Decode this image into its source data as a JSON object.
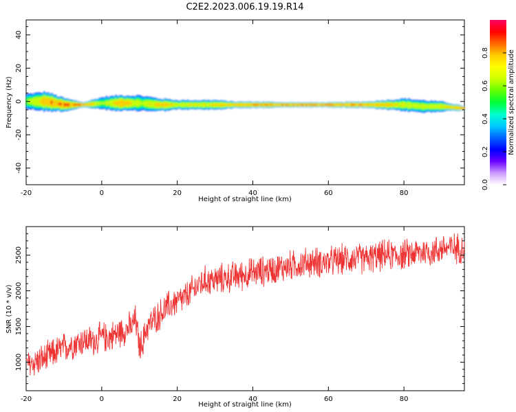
{
  "figure_title": "C2E2.2023.006.19.19.R14",
  "chart_data": [
    {
      "type": "heatmap",
      "xlabel": "Height of straight line (km)",
      "ylabel": "Frequency (Hz)",
      "xlim": [
        -20,
        96
      ],
      "ylim": [
        -50,
        49
      ],
      "x_ticks": [
        -20,
        0,
        20,
        40,
        60,
        80
      ],
      "y_ticks": [
        -40,
        -20,
        0,
        20,
        40
      ],
      "colorbar": {
        "label": "Normalized spectral amplitude",
        "range": [
          0,
          1
        ],
        "ticks": [
          "0.0",
          "0.2",
          "0.4",
          "0.6",
          "0.8"
        ],
        "colors": [
          "#ffffff",
          "#cc99ff",
          "#6600ff",
          "#0000ff",
          "#0066ff",
          "#00ccff",
          "#00ffcc",
          "#00ff33",
          "#66ff00",
          "#ccff00",
          "#ffff00",
          "#ffcc00",
          "#ff6600",
          "#ff0000",
          "#ff0066"
        ]
      },
      "ridge": {
        "x": [
          -20,
          -15,
          -10,
          -5,
          0,
          5,
          10,
          15,
          20,
          25,
          30,
          35,
          40,
          50,
          60,
          70,
          75,
          80,
          85,
          90,
          95
        ],
        "freq": [
          0,
          0,
          -2,
          -2,
          -1,
          -1,
          -1,
          -2,
          -2,
          -2,
          -2,
          -2,
          -2,
          -2,
          -2,
          -2,
          -2,
          -2,
          -3,
          -3,
          -4
        ],
        "halfwidth": [
          5,
          6,
          4,
          1.5,
          4,
          5,
          5,
          4,
          3,
          3,
          3,
          2,
          2,
          1.5,
          1.5,
          2,
          3,
          4,
          4,
          3,
          1.5
        ],
        "amplitude": [
          0.6,
          0.9,
          0.95,
          0.97,
          0.6,
          0.9,
          0.65,
          0.85,
          0.75,
          0.75,
          0.8,
          0.85,
          0.9,
          0.93,
          0.93,
          0.92,
          0.85,
          0.75,
          0.7,
          0.75,
          0.95
        ]
      }
    },
    {
      "type": "line",
      "xlabel": "Height of straight line (km)",
      "ylabel": "SNR (10 * v/v)",
      "xlim": [
        -20,
        96
      ],
      "ylim": [
        600,
        2900
      ],
      "x_ticks": [
        -20,
        0,
        20,
        40,
        60,
        80
      ],
      "y_ticks": [
        1000,
        1500,
        2000,
        2500
      ],
      "color": "#ee3333",
      "x": [
        -20,
        -18,
        -15,
        -12,
        -10,
        -8,
        -5,
        -2,
        0,
        2,
        4,
        6,
        8,
        9,
        10,
        11,
        12,
        14,
        16,
        18,
        20,
        22,
        24,
        26,
        28,
        30,
        35,
        40,
        45,
        50,
        55,
        60,
        65,
        70,
        75,
        80,
        85,
        88,
        90,
        92,
        95,
        96
      ],
      "mean": [
        950,
        1000,
        1050,
        1150,
        1200,
        1250,
        1300,
        1300,
        1350,
        1350,
        1400,
        1450,
        1500,
        1600,
        1200,
        1300,
        1500,
        1600,
        1700,
        1800,
        1850,
        1900,
        2000,
        2100,
        2150,
        2150,
        2200,
        2250,
        2300,
        2350,
        2400,
        2400,
        2450,
        2450,
        2500,
        2500,
        2550,
        2550,
        2600,
        2600,
        2600,
        2600
      ],
      "noise": 180
    }
  ]
}
